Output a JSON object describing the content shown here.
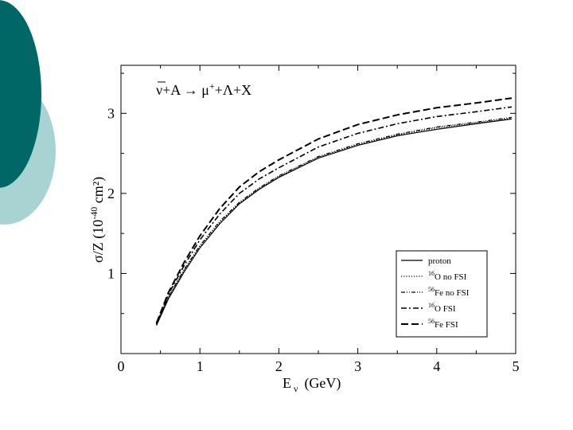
{
  "slide": {
    "decor_colors": {
      "dark": "#006666",
      "light": "#a9d3d3"
    }
  },
  "chart_data": {
    "type": "line",
    "title": "ν̄+A → μ⁺+Λ+X",
    "title_parts": {
      "nubar": "ν",
      "a": "+A → μ",
      "plus": "+",
      "rest": "+Λ+X"
    },
    "xlabel": "E",
    "xlabel_sub": "ν",
    "xlabel_unit": "(GeV)",
    "ylabel_main": "σ/Z (10",
    "ylabel_exp": "-40",
    "ylabel_end": " cm²)",
    "xlim": [
      0,
      5
    ],
    "ylim": [
      0,
      3.6
    ],
    "xticks": [
      0,
      1,
      2,
      3,
      4,
      5
    ],
    "xtick_labels": [
      "0",
      "1",
      "2",
      "3",
      "4",
      "5"
    ],
    "yticks": [
      1,
      2,
      3
    ],
    "ytick_labels": [
      "1",
      "2",
      "3"
    ],
    "grid": false,
    "legend_position": "bottom-right",
    "series": [
      {
        "name": "proton",
        "name_sup": "",
        "style": "solid",
        "x": [
          0.45,
          0.6,
          0.8,
          1.0,
          1.25,
          1.5,
          1.75,
          2.0,
          2.5,
          3.0,
          3.5,
          4.0,
          4.5,
          4.95
        ],
        "y": [
          0.35,
          0.68,
          1.02,
          1.32,
          1.62,
          1.87,
          2.05,
          2.2,
          2.44,
          2.6,
          2.72,
          2.8,
          2.87,
          2.93
        ]
      },
      {
        "name": "O no FSI",
        "name_sup": "16",
        "style": "dotted",
        "x": [
          0.45,
          0.6,
          0.8,
          1.0,
          1.25,
          1.5,
          1.75,
          2.0,
          2.5,
          3.0,
          3.5,
          4.0,
          4.5,
          4.95
        ],
        "y": [
          0.36,
          0.7,
          1.04,
          1.34,
          1.64,
          1.88,
          2.06,
          2.21,
          2.45,
          2.61,
          2.73,
          2.82,
          2.88,
          2.94
        ]
      },
      {
        "name": "Fe no FSI",
        "name_sup": "56",
        "style": "dashdotdot",
        "x": [
          0.45,
          0.6,
          0.8,
          1.0,
          1.25,
          1.5,
          1.75,
          2.0,
          2.5,
          3.0,
          3.5,
          4.0,
          4.5,
          4.95
        ],
        "y": [
          0.37,
          0.71,
          1.05,
          1.35,
          1.65,
          1.89,
          2.07,
          2.22,
          2.46,
          2.62,
          2.74,
          2.83,
          2.89,
          2.95
        ]
      },
      {
        "name": "O FSI",
        "name_sup": "16",
        "style": "dashdot",
        "x": [
          0.45,
          0.6,
          0.8,
          1.0,
          1.25,
          1.5,
          1.75,
          2.0,
          2.5,
          3.0,
          3.5,
          4.0,
          4.5,
          4.95
        ],
        "y": [
          0.37,
          0.74,
          1.1,
          1.42,
          1.74,
          2.0,
          2.18,
          2.32,
          2.58,
          2.75,
          2.87,
          2.96,
          3.02,
          3.08
        ]
      },
      {
        "name": "Fe FSI",
        "name_sup": "56",
        "style": "dashed",
        "x": [
          0.45,
          0.6,
          0.8,
          1.0,
          1.25,
          1.5,
          1.75,
          2.0,
          2.5,
          3.0,
          3.5,
          4.0,
          4.5,
          4.95
        ],
        "y": [
          0.38,
          0.76,
          1.14,
          1.47,
          1.81,
          2.08,
          2.27,
          2.42,
          2.68,
          2.86,
          2.98,
          3.07,
          3.13,
          3.19
        ]
      }
    ]
  }
}
